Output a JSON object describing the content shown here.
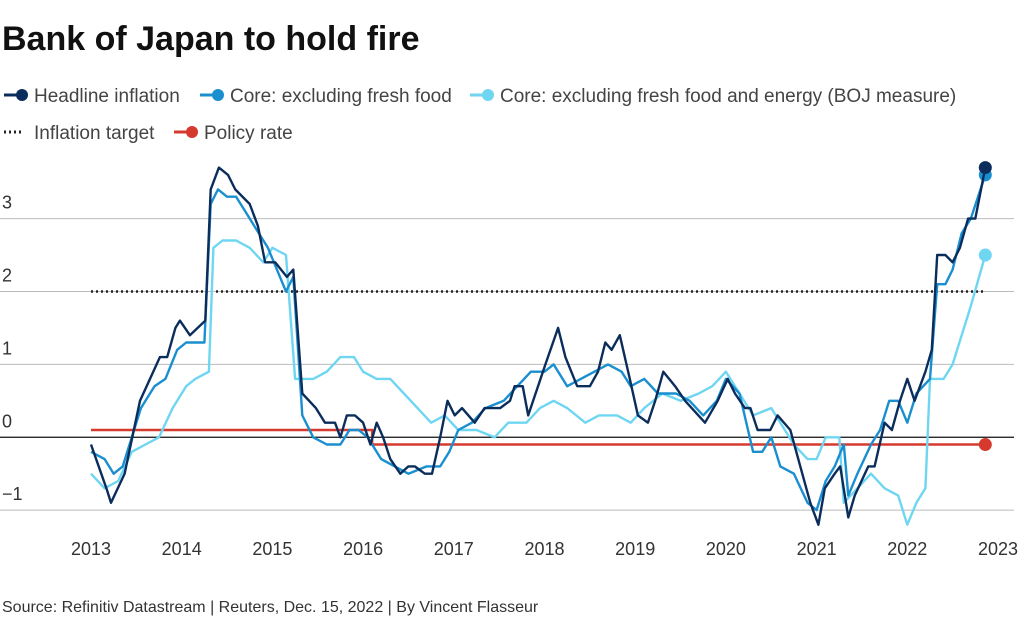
{
  "chart_data": {
    "type": "line",
    "title": "Bank of Japan to hold fire",
    "source": "Source: Refinitiv Datastream | Reuters, Dec. 15, 2022 | By Vincent Flasseur",
    "xlim": [
      2013,
      2023
    ],
    "xticks": [
      2013,
      2014,
      2015,
      2016,
      2017,
      2018,
      2019,
      2020,
      2021,
      2022,
      2023
    ],
    "ylim": [
      -1.3,
      3.9
    ],
    "yticks": [
      {
        "value": -1,
        "label": "−1"
      },
      0,
      1,
      2,
      3
    ],
    "grid": true,
    "series": [
      {
        "name": "Headline inflation",
        "color": "#0b2d5b",
        "style": "solid",
        "x": [
          2013.0,
          2013.17,
          2013.22,
          2013.37,
          2013.54,
          2013.65,
          2013.76,
          2013.84,
          2013.93,
          2013.98,
          2014.09,
          2014.26,
          2014.32,
          2014.41,
          2014.51,
          2014.59,
          2014.75,
          2014.84,
          2014.92,
          2015.03,
          2015.16,
          2015.23,
          2015.33,
          2015.48,
          2015.58,
          2015.69,
          2015.75,
          2015.82,
          2015.91,
          2016.0,
          2016.08,
          2016.15,
          2016.22,
          2016.3,
          2016.41,
          2016.5,
          2016.57,
          2016.68,
          2016.76,
          2016.85,
          2016.93,
          2017.01,
          2017.09,
          2017.23,
          2017.34,
          2017.51,
          2017.62,
          2017.67,
          2017.76,
          2017.82,
          2018.01,
          2018.15,
          2018.23,
          2018.36,
          2018.5,
          2018.59,
          2018.67,
          2018.74,
          2018.83,
          2018.94,
          2019.03,
          2019.14,
          2019.22,
          2019.31,
          2019.44,
          2019.55,
          2019.77,
          2019.91,
          2020.02,
          2020.1,
          2020.21,
          2020.27,
          2020.35,
          2020.49,
          2020.57,
          2020.71,
          2020.82,
          2020.93,
          2021.02,
          2021.09,
          2021.2,
          2021.26,
          2021.35,
          2021.42,
          2021.57,
          2021.64,
          2021.75,
          2021.83,
          2021.92,
          2022.0,
          2022.08,
          2022.2,
          2022.27,
          2022.33,
          2022.42,
          2022.5,
          2022.58,
          2022.67,
          2022.75,
          2022.86
        ],
        "values": [
          -0.1,
          -0.7,
          -0.9,
          -0.5,
          0.5,
          0.8,
          1.1,
          1.1,
          1.5,
          1.6,
          1.4,
          1.6,
          3.4,
          3.7,
          3.6,
          3.4,
          3.2,
          2.9,
          2.4,
          2.4,
          2.2,
          2.3,
          0.6,
          0.4,
          0.2,
          0.2,
          0.0,
          0.3,
          0.3,
          0.2,
          -0.1,
          0.2,
          0.0,
          -0.3,
          -0.5,
          -0.4,
          -0.4,
          -0.5,
          -0.5,
          0.0,
          0.5,
          0.3,
          0.4,
          0.2,
          0.4,
          0.4,
          0.5,
          0.7,
          0.7,
          0.3,
          1.0,
          1.5,
          1.1,
          0.7,
          0.7,
          0.9,
          1.3,
          1.2,
          1.4,
          0.8,
          0.3,
          0.2,
          0.5,
          0.9,
          0.7,
          0.5,
          0.2,
          0.5,
          0.8,
          0.6,
          0.4,
          0.4,
          0.1,
          0.1,
          0.3,
          0.1,
          -0.4,
          -0.9,
          -1.2,
          -0.7,
          -0.5,
          -0.4,
          -1.1,
          -0.8,
          -0.4,
          -0.4,
          0.2,
          0.1,
          0.5,
          0.8,
          0.5,
          0.9,
          1.2,
          2.5,
          2.5,
          2.4,
          2.6,
          3.0,
          3.0,
          3.7
        ]
      },
      {
        "name": "Core: excluding fresh food",
        "color": "#1a8fd0",
        "style": "solid",
        "x": [
          2013.0,
          2013.15,
          2013.25,
          2013.35,
          2013.55,
          2013.7,
          2013.82,
          2013.95,
          2014.05,
          2014.25,
          2014.32,
          2014.4,
          2014.5,
          2014.6,
          2014.7,
          2014.85,
          2014.95,
          2015.05,
          2015.15,
          2015.23,
          2015.33,
          2015.45,
          2015.6,
          2015.75,
          2015.85,
          2015.95,
          2016.05,
          2016.2,
          2016.35,
          2016.5,
          2016.7,
          2016.85,
          2016.95,
          2017.05,
          2017.2,
          2017.35,
          2017.55,
          2017.7,
          2017.85,
          2018.0,
          2018.1,
          2018.25,
          2018.4,
          2018.55,
          2018.7,
          2018.85,
          2018.95,
          2019.1,
          2019.25,
          2019.45,
          2019.6,
          2019.75,
          2019.9,
          2020.0,
          2020.15,
          2020.3,
          2020.4,
          2020.5,
          2020.6,
          2020.75,
          2020.9,
          2021.0,
          2021.1,
          2021.2,
          2021.3,
          2021.35,
          2021.45,
          2021.6,
          2021.7,
          2021.8,
          2021.9,
          2022.0,
          2022.1,
          2022.25,
          2022.33,
          2022.42,
          2022.5,
          2022.6,
          2022.7,
          2022.86
        ],
        "values": [
          -0.2,
          -0.3,
          -0.5,
          -0.4,
          0.4,
          0.7,
          0.8,
          1.2,
          1.3,
          1.3,
          3.2,
          3.4,
          3.3,
          3.3,
          3.1,
          2.8,
          2.6,
          2.3,
          2.0,
          2.2,
          0.3,
          0.0,
          -0.1,
          -0.1,
          0.1,
          0.1,
          0.0,
          -0.3,
          -0.4,
          -0.5,
          -0.4,
          -0.4,
          -0.2,
          0.1,
          0.2,
          0.4,
          0.5,
          0.7,
          0.9,
          0.9,
          1.0,
          0.7,
          0.8,
          0.9,
          1.0,
          0.9,
          0.7,
          0.8,
          0.6,
          0.6,
          0.5,
          0.3,
          0.5,
          0.8,
          0.6,
          -0.2,
          -0.2,
          0.0,
          -0.4,
          -0.5,
          -0.9,
          -1.0,
          -0.6,
          -0.4,
          -0.1,
          -0.8,
          -0.5,
          -0.1,
          0.1,
          0.5,
          0.5,
          0.2,
          0.6,
          0.8,
          2.1,
          2.1,
          2.3,
          2.8,
          3.0,
          3.6
        ]
      },
      {
        "name": "Core: excluding fresh food and energy (BOJ measure)",
        "color": "#6fd6f2",
        "style": "solid",
        "x": [
          2013.0,
          2013.15,
          2013.3,
          2013.45,
          2013.6,
          2013.75,
          2013.9,
          2014.05,
          2014.15,
          2014.3,
          2014.35,
          2014.45,
          2014.6,
          2014.75,
          2014.9,
          2015.0,
          2015.15,
          2015.25,
          2015.45,
          2015.6,
          2015.75,
          2015.9,
          2016.0,
          2016.15,
          2016.3,
          2016.45,
          2016.6,
          2016.75,
          2016.9,
          2017.05,
          2017.25,
          2017.45,
          2017.6,
          2017.8,
          2017.95,
          2018.1,
          2018.25,
          2018.45,
          2018.6,
          2018.8,
          2018.95,
          2019.1,
          2019.3,
          2019.5,
          2019.7,
          2019.85,
          2020.0,
          2020.15,
          2020.3,
          2020.5,
          2020.6,
          2020.75,
          2020.9,
          2021.0,
          2021.1,
          2021.25,
          2021.3,
          2021.45,
          2021.6,
          2021.75,
          2021.9,
          2022.0,
          2022.1,
          2022.2,
          2022.25,
          2022.4,
          2022.5,
          2022.6,
          2022.7,
          2022.86
        ],
        "values": [
          -0.5,
          -0.7,
          -0.6,
          -0.2,
          -0.1,
          0.0,
          0.4,
          0.7,
          0.8,
          0.9,
          2.6,
          2.7,
          2.7,
          2.6,
          2.4,
          2.6,
          2.5,
          0.8,
          0.8,
          0.9,
          1.1,
          1.1,
          0.9,
          0.8,
          0.8,
          0.6,
          0.4,
          0.2,
          0.3,
          0.1,
          0.1,
          0.0,
          0.2,
          0.2,
          0.4,
          0.5,
          0.4,
          0.2,
          0.3,
          0.3,
          0.2,
          0.4,
          0.6,
          0.5,
          0.6,
          0.7,
          0.9,
          0.6,
          0.3,
          0.4,
          0.2,
          -0.1,
          -0.3,
          -0.3,
          0.0,
          0.0,
          -0.9,
          -0.7,
          -0.5,
          -0.7,
          -0.8,
          -1.2,
          -0.9,
          -0.7,
          0.8,
          0.8,
          1.0,
          1.4,
          1.8,
          2.5
        ]
      },
      {
        "name": "Inflation target",
        "color": "#222222",
        "style": "dotted",
        "x": [
          2013,
          2022.86
        ],
        "values": [
          2,
          2
        ]
      },
      {
        "name": "Policy rate",
        "color": "#d63a2e",
        "style": "solid",
        "x": [
          2013,
          2016.1,
          2016.1,
          2022.86
        ],
        "values": [
          0.1,
          0.1,
          -0.1,
          -0.1
        ]
      }
    ]
  }
}
